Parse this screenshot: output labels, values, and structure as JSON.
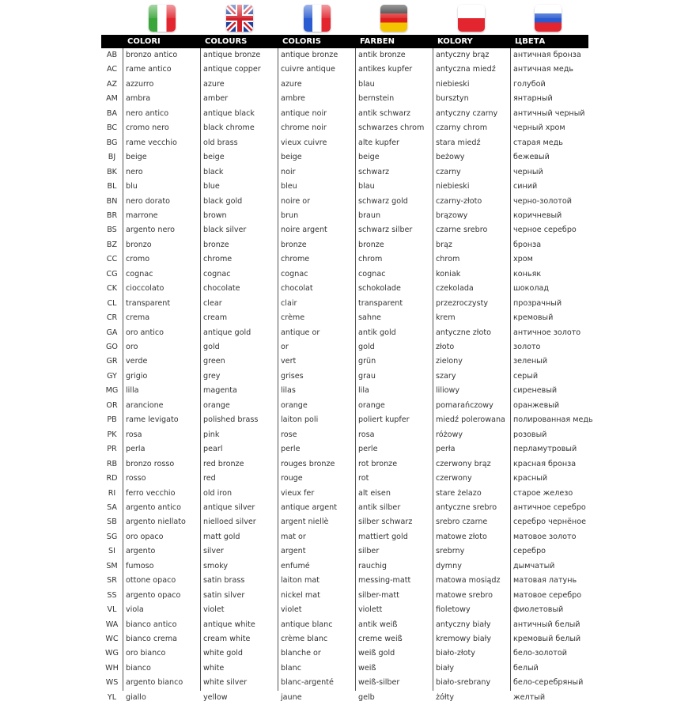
{
  "flags": [
    {
      "icon": "italy-flag-icon",
      "class": "it"
    },
    {
      "icon": "uk-flag-icon",
      "class": "uk"
    },
    {
      "icon": "france-flag-icon",
      "class": "fr"
    },
    {
      "icon": "germany-flag-icon",
      "class": "de"
    },
    {
      "icon": "poland-flag-icon",
      "class": "pl"
    },
    {
      "icon": "russia-flag-icon",
      "class": "ru"
    }
  ],
  "headers": [
    "COLORI",
    "COLOURS",
    "COLORIS",
    "FARBEN",
    "KOLORY",
    "ЦВЕТА"
  ],
  "rows": [
    [
      "AB",
      "bronzo antico",
      "antique bronze",
      "antique bronze",
      "antik bronze",
      "antyczny brąz",
      "античная бронза"
    ],
    [
      "AC",
      "rame antico",
      "antique copper",
      "cuivre antique",
      "antikes kupfer",
      "antyczna miedź",
      "античная медь"
    ],
    [
      "AZ",
      "azzurro",
      "azure",
      "azure",
      "blau",
      "niebieski",
      "голубой"
    ],
    [
      "AM",
      "ambra",
      "amber",
      "ambre",
      "bernstein",
      "bursztyn",
      "янтарный"
    ],
    [
      "BA",
      "nero antico",
      "antique black",
      "antique noir",
      "antik schwarz",
      "antyczny czarny",
      "античный черный"
    ],
    [
      "BC",
      "cromo nero",
      "black chrome",
      "chrome noir",
      "schwarzes chrom",
      "czarny chrom",
      "черный хром"
    ],
    [
      "BG",
      "rame vecchio",
      "old brass",
      "vieux cuivre",
      "alte kupfer",
      "stara miedź",
      "старая медь"
    ],
    [
      "BJ",
      "beige",
      "beige",
      "beige",
      "beige",
      "beżowy",
      "бежевый"
    ],
    [
      "BK",
      "nero",
      "black",
      "noir",
      "schwarz",
      "czarny",
      "черный"
    ],
    [
      "BL",
      "blu",
      "blue",
      "bleu",
      "blau",
      "niebieski",
      "синий"
    ],
    [
      "BN",
      "nero dorato",
      "black gold",
      "noire or",
      "schwarz gold",
      "czarny-złoto",
      "черно-золотой"
    ],
    [
      "BR",
      "marrone",
      "brown",
      "brun",
      "braun",
      "brązowy",
      "коричневый"
    ],
    [
      "BS",
      "argento nero",
      "black silver",
      "noire argent",
      "schwarz silber",
      "czarne srebro",
      "черное серебро"
    ],
    [
      "BZ",
      "bronzo",
      "bronze",
      "bronze",
      "bronze",
      "brąz",
      "бронза"
    ],
    [
      "CC",
      "cromo",
      "chrome",
      "chrome",
      "chrom",
      "chrom",
      "хром"
    ],
    [
      "CG",
      "cognac",
      "cognac",
      "cognac",
      "cognac",
      "koniak",
      "коньяк"
    ],
    [
      "CK",
      "cioccolato",
      "chocolate",
      "chocolat",
      "schokolade",
      "czekolada",
      "шоколад"
    ],
    [
      "CL",
      "transparent",
      "clear",
      "clair",
      "transparent",
      "przezroczysty",
      "прозрачный"
    ],
    [
      "CR",
      "crema",
      "cream",
      "crème",
      "sahne",
      "krem",
      "кремовый"
    ],
    [
      "GA",
      "oro antico",
      "antique gold",
      "antique or",
      "antik gold",
      "antyczne złoto",
      "античное золото"
    ],
    [
      "GO",
      "oro",
      "gold",
      "or",
      "gold",
      "złoto",
      "золото"
    ],
    [
      "GR",
      "verde",
      "green",
      "vert",
      "grün",
      "zielony",
      "зеленый"
    ],
    [
      "GY",
      "grigio",
      "grey",
      "grises",
      "grau",
      "szary",
      "серый"
    ],
    [
      "MG",
      "lilla",
      "magenta",
      "lilas",
      "lila",
      "liliowy",
      "сиреневый"
    ],
    [
      "OR",
      "arancione",
      "orange",
      "orange",
      "orange",
      "pomarańczowy",
      "оранжевый"
    ],
    [
      "PB",
      "rame levigato",
      "polished brass",
      "laiton poli",
      "poliert kupfer",
      "miedź polerowana",
      "полированная медь"
    ],
    [
      "PK",
      "rosa",
      "pink",
      "rose",
      "rosa",
      "różowy",
      "розовый"
    ],
    [
      "PR",
      "perla",
      "pearl",
      "perle",
      "perle",
      "perła",
      "перламутровый"
    ],
    [
      "RB",
      "bronzo rosso",
      "red bronze",
      "rouges bronze",
      "rot bronze",
      "czerwony brąz",
      "красная бронза"
    ],
    [
      "RD",
      "rosso",
      "red",
      "rouge",
      "rot",
      "czerwony",
      "красный"
    ],
    [
      "RI",
      "ferro vecchio",
      "old iron",
      "vieux fer",
      "alt eisen",
      "stare żelazo",
      "старое железо"
    ],
    [
      "SA",
      "argento antico",
      "antique silver",
      "antique argent",
      "antik silber",
      "antyczne srebro",
      "античное серебро"
    ],
    [
      "SB",
      "argento niellato",
      "nielloed silver",
      "argent niellè",
      "silber schwarz",
      "srebro czarne",
      "серебро чернёное"
    ],
    [
      "SG",
      "oro opaco",
      "matt gold",
      "mat or",
      "mattiert gold",
      "matowe złoto",
      "матовое золото"
    ],
    [
      "SI",
      "argento",
      "silver",
      "argent",
      "silber",
      "srebrny",
      "серебро"
    ],
    [
      "SM",
      "fumoso",
      "smoky",
      "enfumé",
      "rauchig",
      "dymny",
      "дымчатый"
    ],
    [
      "SR",
      "ottone opaco",
      "satin brass",
      "laiton mat",
      "messing-matt",
      "matowa mosiądz",
      "матовая латунь"
    ],
    [
      "SS",
      "argento opaco",
      "satin silver",
      "nickel mat",
      "silber-matt",
      "matowe srebro",
      "матовое серебро"
    ],
    [
      "VL",
      "viola",
      "violet",
      "violet",
      "violett",
      "fioletowy",
      "фиолетовый"
    ],
    [
      "WA",
      "bianco antico",
      "antique white",
      "antique blanc",
      "antik weiß",
      "antyczny biały",
      "античный белый"
    ],
    [
      "WC",
      "bianco crema",
      "cream white",
      "crème blanc",
      "creme weiß",
      "kremowy biały",
      "кремовый белый"
    ],
    [
      "WG",
      "oro bianco",
      "white gold",
      "blanche or",
      "weiß gold",
      "biało-złoty",
      "бело-золотой"
    ],
    [
      "WH",
      "bianco",
      "white",
      "blanc",
      "weiß",
      "biały",
      "белый"
    ],
    [
      "WS",
      "argento bianco",
      "white silver",
      "blanc-argenté",
      "weiß-silber",
      "biało-srebrany",
      "бело-серебряный"
    ],
    [
      "YL",
      "giallo",
      "yellow",
      "jaune",
      "gelb",
      "żółty",
      "желтый"
    ]
  ]
}
